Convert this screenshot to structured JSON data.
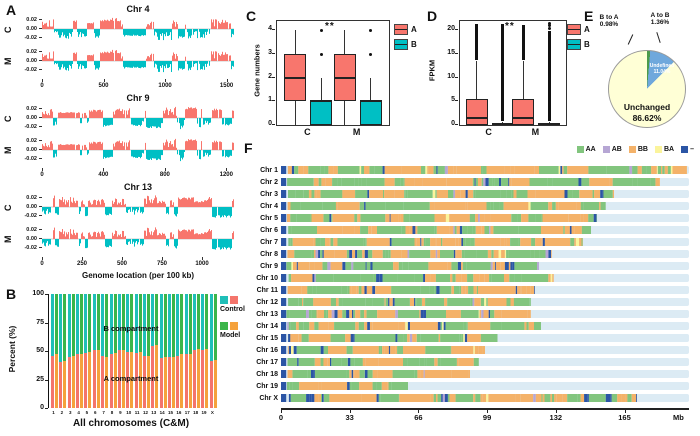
{
  "chart_data": {
    "A": {
      "type": "area",
      "panel_label": "A",
      "description": "A/B compartment PC1 tracks per 100 kb bin; positive (red) = A compartment, negative (teal) = B compartment; rows C (control) and M (model)",
      "track_labels": [
        "C",
        "M"
      ],
      "yticks": [
        "0.02",
        "0.00",
        "-0.02"
      ],
      "xlabel": "Genome location (per 100 kb)",
      "colors": {
        "positive": "#F8766D",
        "negative": "#00BFC4"
      },
      "chromosomes": [
        {
          "title": "Chr 4",
          "xmax": 1560,
          "xticks": [
            0,
            500,
            1000,
            1500
          ],
          "seed": 101
        },
        {
          "title": "Chr 9",
          "xmax": 1250,
          "xticks": [
            0,
            400,
            800,
            1200
          ],
          "seed": 202
        },
        {
          "title": "Chr 13",
          "xmax": 1200,
          "xticks": [
            0,
            250,
            500,
            750,
            1000
          ],
          "seed": 303
        }
      ]
    },
    "B": {
      "type": "bar",
      "panel_label": "B",
      "ylabel": "Percent (%)",
      "xlabel": "All chromosomes (C&M)",
      "yticks": [
        0,
        25,
        50,
        75,
        100
      ],
      "categories": [
        "1",
        "2",
        "3",
        "4",
        "5",
        "6",
        "7",
        "8",
        "9",
        "10",
        "11",
        "12",
        "13",
        "14",
        "15",
        "16",
        "17",
        "18",
        "19",
        "X"
      ],
      "a_percent_control": [
        46,
        40,
        45,
        47,
        48,
        51,
        46,
        47,
        51,
        49,
        48,
        46,
        54,
        44,
        45,
        46,
        47,
        51,
        51,
        41
      ],
      "a_percent_model": [
        47,
        41,
        46,
        47,
        49,
        51,
        45,
        48,
        51,
        49,
        49,
        46,
        55,
        45,
        45,
        47,
        47,
        52,
        52,
        42
      ],
      "annotations": {
        "top": "B compartment",
        "bottom": "A compartment"
      },
      "legend": [
        {
          "label": "Control",
          "colors": [
            "#1FBFB8",
            "#F4756C"
          ]
        },
        {
          "label": "Model",
          "colors": [
            "#3BB54A",
            "#F5A23C"
          ]
        }
      ],
      "colors": {
        "control_b": "#1FBFB8",
        "control_a": "#F4756C",
        "model_b": "#3BB54A",
        "model_a": "#F5A23C"
      }
    },
    "C": {
      "type": "box",
      "panel_label": "C",
      "ylabel": "Gene numbers",
      "yticks": [
        0,
        1,
        2,
        3,
        4
      ],
      "ylim": [
        0,
        4.4
      ],
      "significance": "**",
      "legend": [
        {
          "label": "A",
          "color": "#F8766D"
        },
        {
          "label": "B",
          "color": "#00BFC4"
        }
      ],
      "groups": [
        {
          "label": "C",
          "boxes": [
            {
              "name": "A",
              "color": "#F8766D",
              "lo": 0,
              "q1": 1,
              "med": 2,
              "q3": 3,
              "hi": 4,
              "outliers": []
            },
            {
              "name": "B",
              "color": "#00BFC4",
              "lo": 0,
              "q1": 0,
              "med": 1,
              "q3": 1,
              "hi": 2,
              "outliers": [
                3,
                4
              ]
            }
          ]
        },
        {
          "label": "M",
          "boxes": [
            {
              "name": "A",
              "color": "#F8766D",
              "lo": 0,
              "q1": 1,
              "med": 2,
              "q3": 3,
              "hi": 4,
              "outliers": []
            },
            {
              "name": "B",
              "color": "#00BFC4",
              "lo": 0,
              "q1": 0,
              "med": 1,
              "q3": 1,
              "hi": 2,
              "outliers": [
                3,
                4
              ]
            }
          ]
        }
      ]
    },
    "D": {
      "type": "box",
      "panel_label": "D",
      "ylabel": "FPKM",
      "yticks": [
        0,
        5,
        10,
        15,
        20
      ],
      "ylim": [
        0,
        22
      ],
      "significance": "**",
      "legend": [
        {
          "label": "A",
          "color": "#F8766D"
        },
        {
          "label": "B",
          "color": "#00BFC4"
        }
      ],
      "groups": [
        {
          "label": "C",
          "boxes": [
            {
              "name": "A",
              "color": "#F8766D",
              "lo": 0,
              "q1": 0.1,
              "med": 1.4,
              "q3": 5.5,
              "hi": 13.5,
              "outlier_col": [
                13.8,
                21.3
              ],
              "outliers": []
            },
            {
              "name": "B",
              "color": "#00BFC4",
              "lo": 0,
              "q1": 0,
              "med": 0.15,
              "q3": 0.4,
              "hi": 0.7,
              "outlier_col": [
                0.9,
                21.4
              ],
              "outliers": []
            }
          ]
        },
        {
          "label": "M",
          "boxes": [
            {
              "name": "A",
              "color": "#F8766D",
              "lo": 0,
              "q1": 0.1,
              "med": 1.4,
              "q3": 5.5,
              "hi": 13.5,
              "outlier_col": [
                13.8,
                21.2
              ],
              "outliers": []
            },
            {
              "name": "B",
              "color": "#00BFC4",
              "lo": 0,
              "q1": 0,
              "med": 0.15,
              "q3": 0.4,
              "hi": 0.7,
              "outlier_col": [
                0.9,
                19.8
              ],
              "outliers": [
                20.4,
                21,
                21.5
              ]
            }
          ]
        }
      ]
    },
    "E": {
      "type": "pie",
      "panel_label": "E",
      "slices": [
        {
          "label": "B to A",
          "value": 0.98,
          "color": "#C94335"
        },
        {
          "label": "A to B",
          "value": 1.36,
          "color": "#4C9A4C"
        },
        {
          "label": "Undefined",
          "value": 11.04,
          "color": "#6FA8DC"
        },
        {
          "label": "Unchanged",
          "value": 86.62,
          "color": "#FFFFD6"
        }
      ],
      "labels": {
        "b_to_a": "B to A",
        "b_to_a_pct": "0.98%",
        "a_to_b": "A to B",
        "a_to_b_pct": "1.36%",
        "undefined_name": "Undefined",
        "undefined_pct": "11.04%",
        "unchanged": "Unchanged",
        "unchanged_pct": "86.62%"
      }
    },
    "F": {
      "type": "heatmap",
      "panel_label": "F",
      "legend": [
        {
          "label": "AA",
          "color": "#82C57E"
        },
        {
          "label": "AB",
          "color": "#B6A6D4"
        },
        {
          "label": "BB",
          "color": "#F4B269"
        },
        {
          "label": "BA",
          "color": "#FBF49C"
        },
        {
          "label": "–",
          "color": "#2B55A5"
        }
      ],
      "axis": {
        "ticks": [
          0,
          33,
          66,
          99,
          132,
          165
        ],
        "unit": "Mb",
        "max": 196
      },
      "track_bg": "#DCEBF4",
      "chromosomes": [
        {
          "name": "Chr 1",
          "length_mb": 195,
          "seed": 11
        },
        {
          "name": "Chr 2",
          "length_mb": 182,
          "seed": 12
        },
        {
          "name": "Chr 3",
          "length_mb": 160,
          "seed": 13
        },
        {
          "name": "Chr 4",
          "length_mb": 156,
          "seed": 14
        },
        {
          "name": "Chr 5",
          "length_mb": 152,
          "seed": 15
        },
        {
          "name": "Chr 6",
          "length_mb": 149,
          "seed": 16
        },
        {
          "name": "Chr 7",
          "length_mb": 145,
          "seed": 17
        },
        {
          "name": "Chr 8",
          "length_mb": 130,
          "seed": 18
        },
        {
          "name": "Chr 9",
          "length_mb": 124,
          "seed": 19
        },
        {
          "name": "Chr 10",
          "length_mb": 131,
          "seed": 20
        },
        {
          "name": "Chr 11",
          "length_mb": 122,
          "seed": 21
        },
        {
          "name": "Chr 12",
          "length_mb": 120,
          "seed": 22
        },
        {
          "name": "Chr 13",
          "length_mb": 120,
          "seed": 23
        },
        {
          "name": "Chr 14",
          "length_mb": 125,
          "seed": 24
        },
        {
          "name": "Chr 15",
          "length_mb": 104,
          "seed": 25
        },
        {
          "name": "Chr 16",
          "length_mb": 98,
          "seed": 26
        },
        {
          "name": "Chr 17",
          "length_mb": 95,
          "seed": 27
        },
        {
          "name": "Chr 18",
          "length_mb": 91,
          "seed": 28
        },
        {
          "name": "Chr 19",
          "length_mb": 61,
          "seed": 29
        },
        {
          "name": "Chr X",
          "length_mb": 171,
          "seed": 30
        }
      ]
    }
  }
}
